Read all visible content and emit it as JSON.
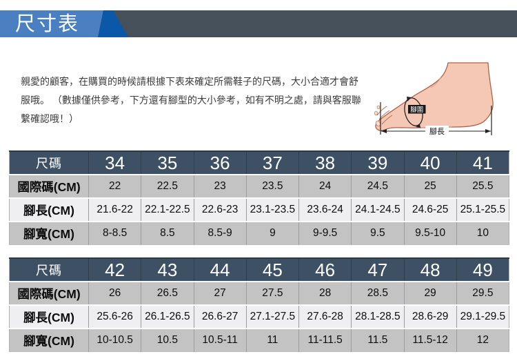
{
  "banner": {
    "title": "尺寸表"
  },
  "intro": {
    "lines": [
      "親愛的顧客，在購買的時候請根據下表來確定所需鞋子的尺碼，大小合適才會舒",
      "服哦。 （數據僅供參考，下方還有腳型的大小參考，如有不明之處，請與客服聯",
      "繫確認哦！）"
    ]
  },
  "foot_diagram": {
    "girth_label": "腳圍",
    "length_label": "腳長"
  },
  "tables": [
    {
      "rows": [
        {
          "label": "尺碼",
          "values": [
            "34",
            "35",
            "36",
            "37",
            "38",
            "39",
            "40",
            "41"
          ]
        },
        {
          "label": "國際碼(CM)",
          "values": [
            "22",
            "22.5",
            "23",
            "23.5",
            "24",
            "24.5",
            "25",
            "25.5"
          ]
        },
        {
          "label": "腳長(CM)",
          "values": [
            "21.6-22",
            "22.1-22.5",
            "22.6-23",
            "23.1-23.5",
            "23.6-24",
            "24.1-24.5",
            "24.6-25",
            "25.1-25.5"
          ]
        },
        {
          "label": "腳寬(CM)",
          "values": [
            "8-8.5",
            "8.5",
            "8.5-9",
            "9",
            "9-9.5",
            "9.5",
            "9.5-10",
            "10"
          ]
        }
      ]
    },
    {
      "rows": [
        {
          "label": "尺碼",
          "values": [
            "42",
            "43",
            "44",
            "45",
            "46",
            "47",
            "48",
            "49"
          ]
        },
        {
          "label": "國際碼(CM)",
          "values": [
            "26",
            "26.5",
            "27",
            "27.5",
            "28",
            "28.5",
            "29",
            "29.5"
          ]
        },
        {
          "label": "腳長(CM)",
          "values": [
            "25.6-26",
            "26.1-26.5",
            "26.6-27",
            "27.1-27.5",
            "27.6-28",
            "28.1-28.5",
            "28.6-29",
            "29.1-29.5"
          ]
        },
        {
          "label": "腳寬(CM)",
          "values": [
            "10-10.5",
            "10.5",
            "10.5-11",
            "11",
            "11-11.5",
            "11.5",
            "11.5-12",
            "12"
          ]
        }
      ]
    }
  ],
  "colors": {
    "banner_blue": "#4a7fc1",
    "banner_dark_blue": "#0b57a8",
    "banner_slate": "#46505b",
    "table_header": "#3e5164",
    "row_gray": "#c3c3c4",
    "row_light": "#efeff1",
    "foot_skin": "#f4c8b5"
  }
}
